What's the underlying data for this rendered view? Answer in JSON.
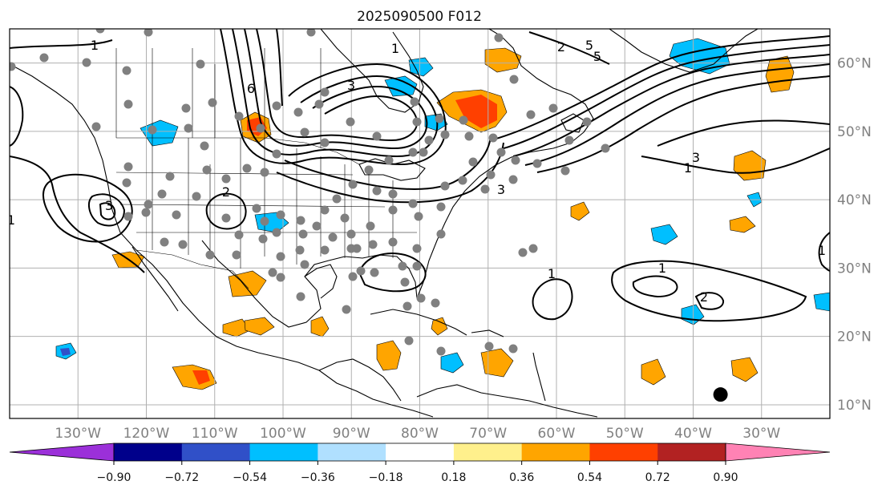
{
  "title": "2025090500 F012",
  "map": {
    "projection": "PlateCarree",
    "extent": {
      "lon_min": -140,
      "lon_max": -20,
      "lat_min": 8,
      "lat_max": 65
    },
    "gridlines": {
      "lons": [
        -130,
        -120,
        -110,
        -100,
        -90,
        -80,
        -70,
        -60,
        -50,
        -40,
        -30
      ],
      "lats": [
        10,
        20,
        30,
        40,
        50,
        60
      ]
    },
    "lon_labels": [
      "130°W",
      "120°W",
      "110°W",
      "100°W",
      "90°W",
      "80°W",
      "70°W",
      "60°W",
      "50°W",
      "40°W",
      "30°W"
    ],
    "lat_labels": [
      "60°N",
      "50°N",
      "40°N",
      "30°N",
      "20°N",
      "10°N"
    ],
    "contour_labels": [
      "1",
      "1",
      "1",
      "1",
      "1",
      "1",
      "1",
      "2",
      "3",
      "3",
      "3",
      "3",
      "5",
      "6",
      "2",
      "5",
      "2"
    ],
    "marker": {
      "label": "",
      "lon": -36,
      "lat": 11.5
    }
  },
  "colorbar": {
    "ticks": [
      "−0.90",
      "−0.72",
      "−0.54",
      "−0.36",
      "−0.18",
      "0.18",
      "0.36",
      "0.54",
      "0.72",
      "0.90"
    ],
    "colors": [
      "#9b30d9",
      "#00008b",
      "#3050c8",
      "#00bfff",
      "#b0e0ff",
      "#ffffff",
      "#fff08c",
      "#ffa500",
      "#ff4000",
      "#b22222",
      "#ff82b4"
    ]
  },
  "colors": {
    "grid": "#b0b0b0",
    "coast": "#000000",
    "station": "#808080"
  }
}
